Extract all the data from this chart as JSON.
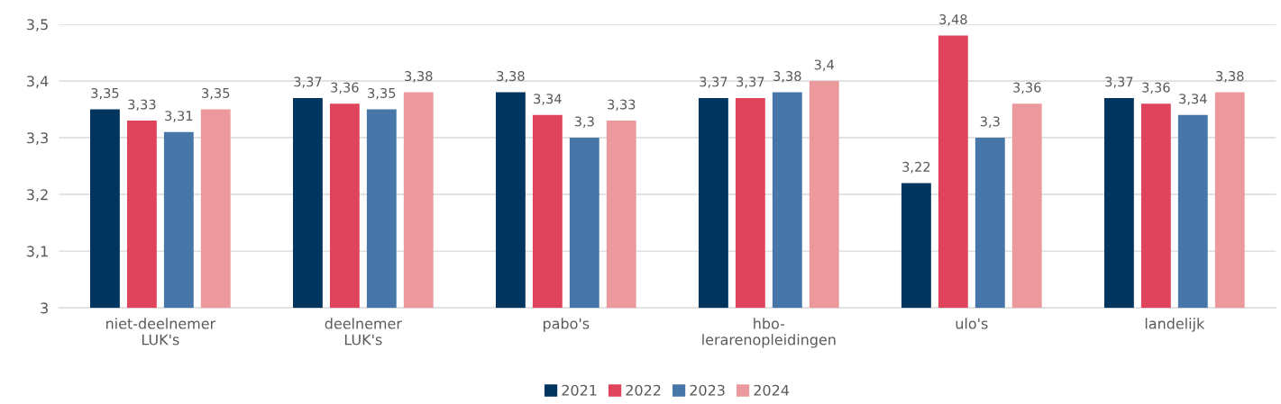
{
  "chart_data": {
    "type": "bar",
    "categories": [
      "niet-deelnemer\nLUK's",
      "deelnemer\nLUK's",
      "pabo's",
      "hbo-\nlerarenopleidingen",
      "ulo's",
      "landelijk"
    ],
    "series": [
      {
        "name": "2021",
        "color": "#003560",
        "values": [
          3.35,
          3.37,
          3.38,
          3.37,
          3.22,
          3.37
        ],
        "value_labels": [
          "3,35",
          "3,37",
          "3,38",
          "3,37",
          "3,22",
          "3,37"
        ]
      },
      {
        "name": "2022",
        "color": "#e0435c",
        "values": [
          3.33,
          3.36,
          3.34,
          3.37,
          3.48,
          3.36
        ],
        "value_labels": [
          "3,33",
          "3,36",
          "3,34",
          "3,37",
          "3,48",
          "3,36"
        ]
      },
      {
        "name": "2023",
        "color": "#4677a8",
        "values": [
          3.31,
          3.35,
          3.3,
          3.38,
          3.3,
          3.34
        ],
        "value_labels": [
          "3,31",
          "3,35",
          "3,3",
          "3,38",
          "3,3",
          "3,34"
        ]
      },
      {
        "name": "2024",
        "color": "#eb999c",
        "values": [
          3.35,
          3.38,
          3.33,
          3.4,
          3.36,
          3.38
        ],
        "value_labels": [
          "3,35",
          "3,38",
          "3,33",
          "3,4",
          "3,36",
          "3,38"
        ]
      }
    ],
    "ylim": [
      3,
      3.5
    ],
    "yticks": [
      3,
      {
        "value": 3.1,
        "label": "3,1"
      },
      {
        "value": 3.2,
        "label": "3,2"
      },
      {
        "value": 3.3,
        "label": "3,3"
      },
      {
        "value": 3.4,
        "label": "3,4"
      },
      {
        "value": 3.5,
        "label": "3,5"
      }
    ],
    "grid": "y",
    "legend": "bottom"
  }
}
